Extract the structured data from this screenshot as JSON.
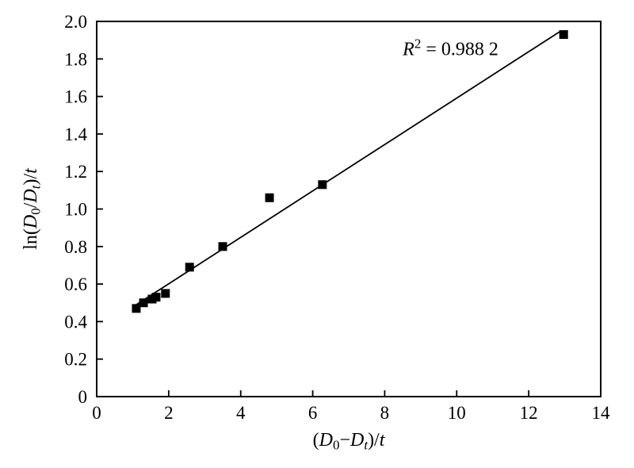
{
  "figure": {
    "background_color": "#ffffff",
    "ink_color": "#000000"
  },
  "chart_data": {
    "type": "scatter",
    "title": "",
    "xlabel_text": "(D0−Dt)/t",
    "ylabel_text": "ln(D0/Dt)/t",
    "xlabel_segments": [
      {
        "text": "(",
        "style": "normal"
      },
      {
        "text": "D",
        "style": "italic"
      },
      {
        "text": "0",
        "style": "sub"
      },
      {
        "text": "−",
        "style": "normal"
      },
      {
        "text": "D",
        "style": "italic"
      },
      {
        "text": "t",
        "style": "italic-sub"
      },
      {
        "text": ")/",
        "style": "normal"
      },
      {
        "text": "t",
        "style": "italic"
      }
    ],
    "ylabel_segments": [
      {
        "text": "ln(",
        "style": "normal"
      },
      {
        "text": "D",
        "style": "italic"
      },
      {
        "text": "0",
        "style": "sub"
      },
      {
        "text": "/",
        "style": "normal"
      },
      {
        "text": "D",
        "style": "italic"
      },
      {
        "text": "t",
        "style": "italic-sub"
      },
      {
        "text": ")/",
        "style": "normal"
      },
      {
        "text": "t",
        "style": "italic"
      }
    ],
    "xlim": [
      0,
      14
    ],
    "ylim": [
      0,
      2.0
    ],
    "x_ticks": {
      "values": [
        0,
        2,
        4,
        6,
        8,
        10,
        12,
        14
      ],
      "labels": [
        "0",
        "2",
        "4",
        "6",
        "8",
        "10",
        "12",
        "14"
      ]
    },
    "y_ticks": {
      "values": [
        0,
        0.2,
        0.4,
        0.6,
        0.8,
        1.0,
        1.2,
        1.4,
        1.6,
        1.8,
        2.0
      ],
      "labels": [
        "0",
        "0.2",
        "0.4",
        "0.6",
        "0.8",
        "1.0",
        "1.2",
        "1.4",
        "1.6",
        "1.8",
        "2.0"
      ]
    },
    "grid": false,
    "legend": "none",
    "marker": {
      "shape": "square",
      "size": 11,
      "color": "#000000"
    },
    "points": [
      [
        1.1,
        0.47
      ],
      [
        1.3,
        0.5
      ],
      [
        1.54,
        0.52
      ],
      [
        1.65,
        0.53
      ],
      [
        1.91,
        0.55
      ],
      [
        2.58,
        0.69
      ],
      [
        3.5,
        0.8
      ],
      [
        4.8,
        1.06
      ],
      [
        6.27,
        1.13
      ],
      [
        12.97,
        1.93
      ]
    ],
    "fit_line": {
      "x1": 1.1,
      "y1": 0.49,
      "x2": 12.9,
      "y2": 1.95,
      "color": "#000000"
    },
    "annotation": {
      "text": "R² = 0.988 2",
      "segments": [
        {
          "text": "R",
          "style": "italic"
        },
        {
          "text": "2",
          "style": "sup"
        },
        {
          "text": " = 0.988 2",
          "style": "normal"
        }
      ],
      "x": 8.5,
      "y": 1.82
    }
  }
}
